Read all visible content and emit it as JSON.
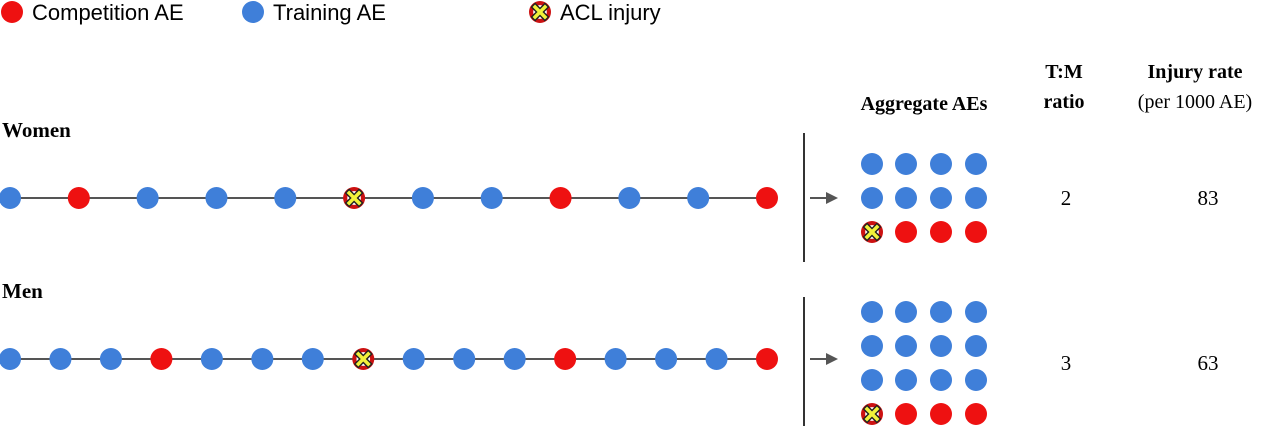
{
  "legend": [
    {
      "kind": "competition",
      "label": "Competition AE"
    },
    {
      "kind": "training",
      "label": "Training AE"
    },
    {
      "kind": "injury",
      "label": "ACL injury"
    }
  ],
  "columns": {
    "aggregate": "Aggregate AEs",
    "ratio_line1": "T:M",
    "ratio_line2": "ratio",
    "rate_line1": "Injury rate",
    "rate_line2": "(per 1000 AE)"
  },
  "rows": [
    {
      "label": "Women",
      "sequence": [
        "T",
        "C",
        "T",
        "T",
        "T",
        "I",
        "T",
        "T",
        "C",
        "T",
        "T",
        "C"
      ],
      "aggregate": [
        [
          "T",
          "T",
          "T",
          "T"
        ],
        [
          "T",
          "T",
          "T",
          "T"
        ],
        [
          "I",
          "C",
          "C",
          "C"
        ]
      ],
      "ratio": "2",
      "rate": "83"
    },
    {
      "label": "Men",
      "sequence": [
        "T",
        "T",
        "T",
        "C",
        "T",
        "T",
        "T",
        "I",
        "T",
        "T",
        "T",
        "C",
        "T",
        "T",
        "T",
        "C"
      ],
      "aggregate": [
        [
          "T",
          "T",
          "T",
          "T"
        ],
        [
          "T",
          "T",
          "T",
          "T"
        ],
        [
          "T",
          "T",
          "T",
          "T"
        ],
        [
          "I",
          "C",
          "C",
          "C"
        ]
      ],
      "ratio": "3",
      "rate": "63"
    }
  ],
  "colors": {
    "competition": "#ee1111",
    "training": "#3f7fd9",
    "injury_fill": "#f2f23a",
    "injury_ring": "#cc1111",
    "line": "#555555",
    "text": "#000000"
  }
}
